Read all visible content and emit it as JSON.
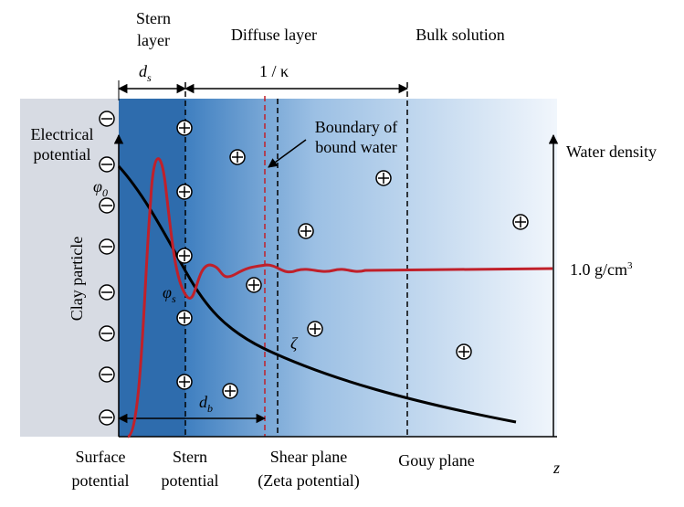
{
  "regions": {
    "stern": [
      "Stern",
      "layer"
    ],
    "diffuse": "Diffuse layer",
    "bulk": "Bulk solution"
  },
  "thickness": {
    "stern": {
      "symbol": "d",
      "sub": "s"
    },
    "debye": "1 / κ",
    "bound": {
      "symbol": "d",
      "sub": "b"
    }
  },
  "annotations": {
    "boundary": [
      "Boundary of",
      "bound water"
    ],
    "electrical_potential": [
      "Electrical",
      "potential"
    ],
    "water_density": "Water density",
    "particle": "Clay particle",
    "density_value": {
      "text": "1.0 g/cm",
      "sup": "3"
    }
  },
  "symbols": {
    "phi0": {
      "symbol": "φ",
      "sub": "0"
    },
    "phis": {
      "symbol": "φ",
      "sub": "s"
    },
    "zeta": "ζ",
    "z": "z"
  },
  "planes": {
    "surface": [
      "Surface",
      "potential"
    ],
    "stern": [
      "Stern",
      "potential"
    ],
    "shear": [
      "Shear plane",
      "(Zeta potential)"
    ],
    "gouy": "Gouy plane"
  }
}
